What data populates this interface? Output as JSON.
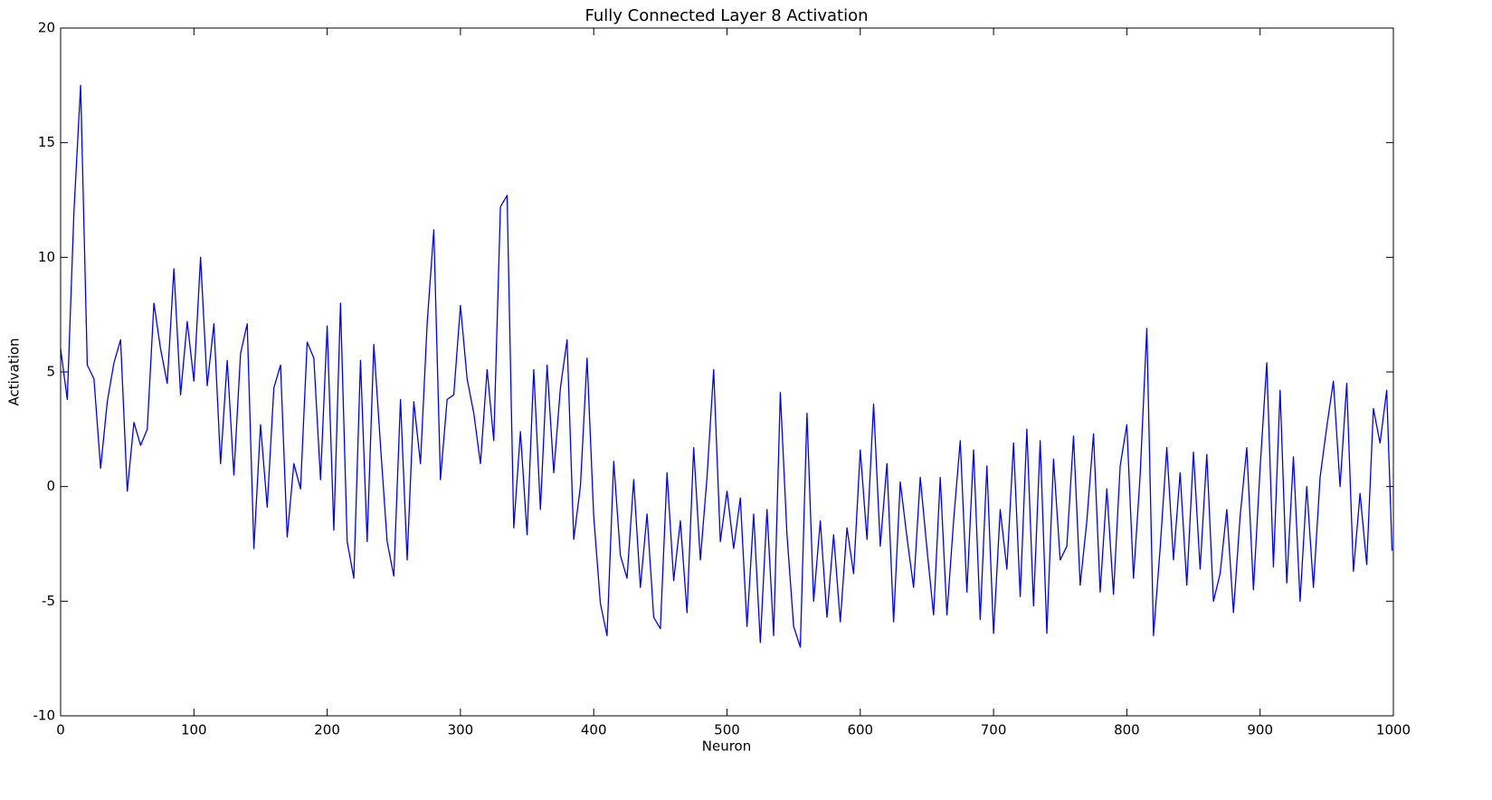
{
  "chart_data": {
    "type": "line",
    "title": "Fully Connected Layer 8 Activation",
    "x_label": "Neuron",
    "y_label": "Activation",
    "xlim": [
      0,
      1000
    ],
    "ylim": [
      -10,
      20
    ],
    "xticks": [
      0,
      100,
      200,
      300,
      400,
      500,
      600,
      700,
      800,
      900,
      1000
    ],
    "yticks": [
      -10,
      -5,
      0,
      5,
      10,
      15,
      20
    ],
    "grid": false,
    "x": [
      0,
      5,
      10,
      15,
      20,
      25,
      30,
      35,
      40,
      45,
      50,
      55,
      60,
      65,
      70,
      75,
      80,
      85,
      90,
      95,
      100,
      105,
      110,
      115,
      120,
      125,
      130,
      135,
      140,
      145,
      150,
      155,
      160,
      165,
      170,
      175,
      180,
      185,
      190,
      195,
      200,
      205,
      210,
      215,
      220,
      225,
      230,
      235,
      240,
      245,
      250,
      255,
      260,
      265,
      270,
      275,
      280,
      285,
      290,
      295,
      300,
      305,
      310,
      315,
      320,
      325,
      330,
      335,
      340,
      345,
      350,
      355,
      360,
      365,
      370,
      375,
      380,
      385,
      390,
      395,
      400,
      405,
      410,
      415,
      420,
      425,
      430,
      435,
      440,
      445,
      450,
      455,
      460,
      465,
      470,
      475,
      480,
      485,
      490,
      495,
      500,
      505,
      510,
      515,
      520,
      525,
      530,
      535,
      540,
      545,
      550,
      555,
      560,
      565,
      570,
      575,
      580,
      585,
      590,
      595,
      600,
      605,
      610,
      615,
      620,
      625,
      630,
      635,
      640,
      645,
      650,
      655,
      660,
      665,
      670,
      675,
      680,
      685,
      690,
      695,
      700,
      705,
      710,
      715,
      720,
      725,
      730,
      735,
      740,
      745,
      750,
      755,
      760,
      765,
      770,
      775,
      780,
      785,
      790,
      795,
      800,
      805,
      810,
      815,
      820,
      825,
      830,
      835,
      840,
      845,
      850,
      855,
      860,
      865,
      870,
      875,
      880,
      885,
      890,
      895,
      900,
      905,
      910,
      915,
      920,
      925,
      930,
      935,
      940,
      945,
      950,
      955,
      960,
      965,
      970,
      975,
      980,
      985,
      990,
      995,
      999
    ],
    "series": [
      {
        "color": "#0000ff",
        "values": [
          6,
          3.8,
          12,
          17.5,
          5.3,
          4.7,
          0.8,
          3.7,
          5.4,
          6.4,
          -0.2,
          2.8,
          1.8,
          2.5,
          8,
          6,
          4.5,
          9.5,
          4,
          7.2,
          4.6,
          10,
          4.4,
          7.1,
          1,
          5.5,
          0.5,
          5.8,
          7.1,
          -2.7,
          2.7,
          -0.9,
          4.3,
          5.3,
          -2.2,
          1,
          -0.1,
          6.3,
          5.6,
          0.3,
          7,
          -1.9,
          8,
          -2.4,
          -4,
          5.5,
          -2.4,
          6.2,
          1.8,
          -2.4,
          -3.9,
          3.8,
          -3.2,
          3.7,
          1,
          7.1,
          11.2,
          0.3,
          3.8,
          4,
          7.9,
          4.7,
          3.2,
          1,
          5.1,
          2,
          12.2,
          12.7,
          -1.8,
          2.4,
          -2.1,
          5.1,
          -1,
          5.3,
          0.6,
          4.3,
          6.4,
          -2.3,
          0,
          5.6,
          -1.3,
          -5.1,
          -6.5,
          1.1,
          -3,
          -4,
          0.3,
          -4.4,
          -1.2,
          -5.7,
          -6.2,
          0.6,
          -4.1,
          -1.5,
          -5.5,
          1.7,
          -3.2,
          0.4,
          5.1,
          -2.4,
          -0.2,
          -2.7,
          -0.5,
          -6.1,
          -1.2,
          -6.8,
          -1,
          -6.5,
          4.1,
          -2.1,
          -6.1,
          -7,
          3.2,
          -5,
          -1.5,
          -5.7,
          -2.1,
          -5.9,
          -1.8,
          -3.8,
          1.6,
          -2.3,
          3.6,
          -2.6,
          1,
          -5.9,
          0.2,
          -2.2,
          -4.4,
          0.4,
          -2.7,
          -5.6,
          0.4,
          -5.6,
          -1.5,
          2,
          -4.6,
          1.6,
          -5.8,
          0.9,
          -6.4,
          -1,
          -3.6,
          1.9,
          -4.8,
          2.5,
          -5.2,
          2,
          -6.4,
          1.2,
          -3.2,
          -2.6,
          2.2,
          -4.3,
          -1.5,
          2.3,
          -4.6,
          -0.1,
          -4.7,
          0.9,
          2.7,
          -4,
          0.5,
          6.9,
          -6.5,
          -2.7,
          1.7,
          -3.2,
          0.6,
          -4.3,
          1.5,
          -3.6,
          1.4,
          -5,
          -3.8,
          -1,
          -5.5,
          -1.3,
          1.7,
          -4.5,
          0.8,
          5.4,
          -3.5,
          4.2,
          -4.2,
          1.3,
          -5,
          0,
          -4.4,
          0.4,
          2.6,
          4.6,
          0,
          4.5,
          -3.7,
          -0.3,
          -3.4,
          3.4,
          1.9,
          4.2,
          -2.8
        ]
      }
    ]
  }
}
